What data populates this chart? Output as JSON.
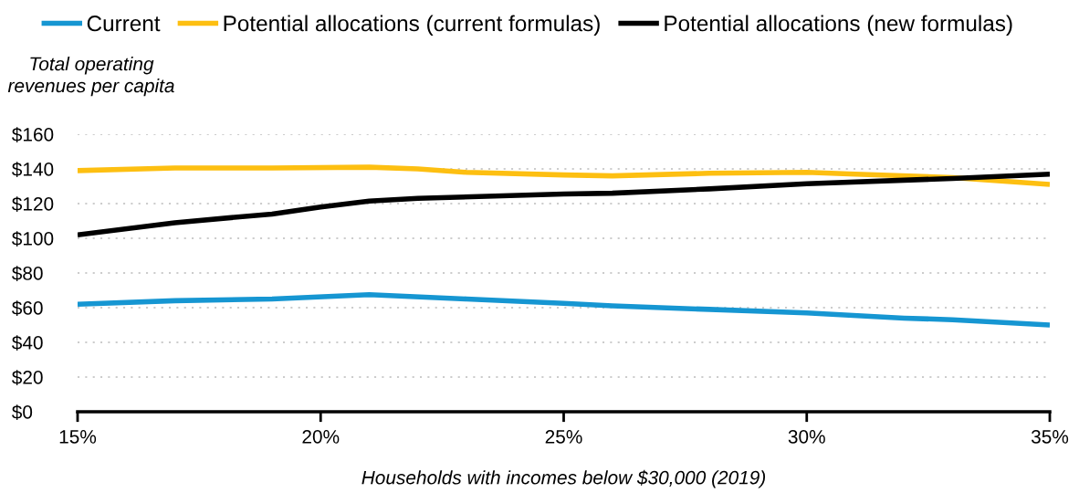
{
  "chart_data": {
    "type": "line",
    "xlabel": "Households with incomes below $30,000 (2019)",
    "ylabel": "Total operating\nrevenues per capita",
    "xlim": [
      15,
      35
    ],
    "xticks": [
      {
        "value": 15,
        "label": "15%"
      },
      {
        "value": 20,
        "label": "20%"
      },
      {
        "value": 25,
        "label": "25%"
      },
      {
        "value": 30,
        "label": "30%"
      },
      {
        "value": 35,
        "label": "35%"
      }
    ],
    "ylim": [
      0,
      160
    ],
    "yticks": [
      {
        "value": 0,
        "label": "$0"
      },
      {
        "value": 20,
        "label": "$20"
      },
      {
        "value": 40,
        "label": "$40"
      },
      {
        "value": 60,
        "label": "$60"
      },
      {
        "value": 80,
        "label": "$80"
      },
      {
        "value": 100,
        "label": "$100"
      },
      {
        "value": 120,
        "label": "$120"
      },
      {
        "value": 140,
        "label": "$140"
      },
      {
        "value": 160,
        "label": "$160"
      }
    ],
    "grid": "y",
    "legend": "top",
    "line_style": "solid",
    "marker": "none",
    "series": [
      {
        "name": "Current",
        "color": "#1696d2",
        "x": [
          15,
          17,
          19,
          21,
          23,
          25,
          26,
          28,
          30,
          32,
          33,
          35
        ],
        "values": [
          62,
          64,
          65,
          67.5,
          65,
          62.5,
          61,
          59,
          57,
          54,
          53,
          50
        ]
      },
      {
        "name": "Potential allocations (current formulas)",
        "color": "#fdbf11",
        "x": [
          15,
          17,
          19,
          21,
          22,
          23,
          25,
          26,
          28,
          30,
          31,
          33,
          35
        ],
        "values": [
          139,
          140.5,
          140.5,
          141,
          140,
          138,
          136.5,
          136,
          137.5,
          138,
          137,
          135,
          131
        ]
      },
      {
        "name": "Potential allocations (new formulas)",
        "color": "#000000",
        "x": [
          15,
          17,
          19,
          20,
          21,
          22,
          25,
          26,
          28,
          30,
          32,
          33,
          35
        ],
        "values": [
          102,
          109,
          114,
          118,
          121.5,
          123,
          125.5,
          126,
          128.5,
          131.5,
          133.5,
          134.5,
          137
        ]
      }
    ]
  }
}
